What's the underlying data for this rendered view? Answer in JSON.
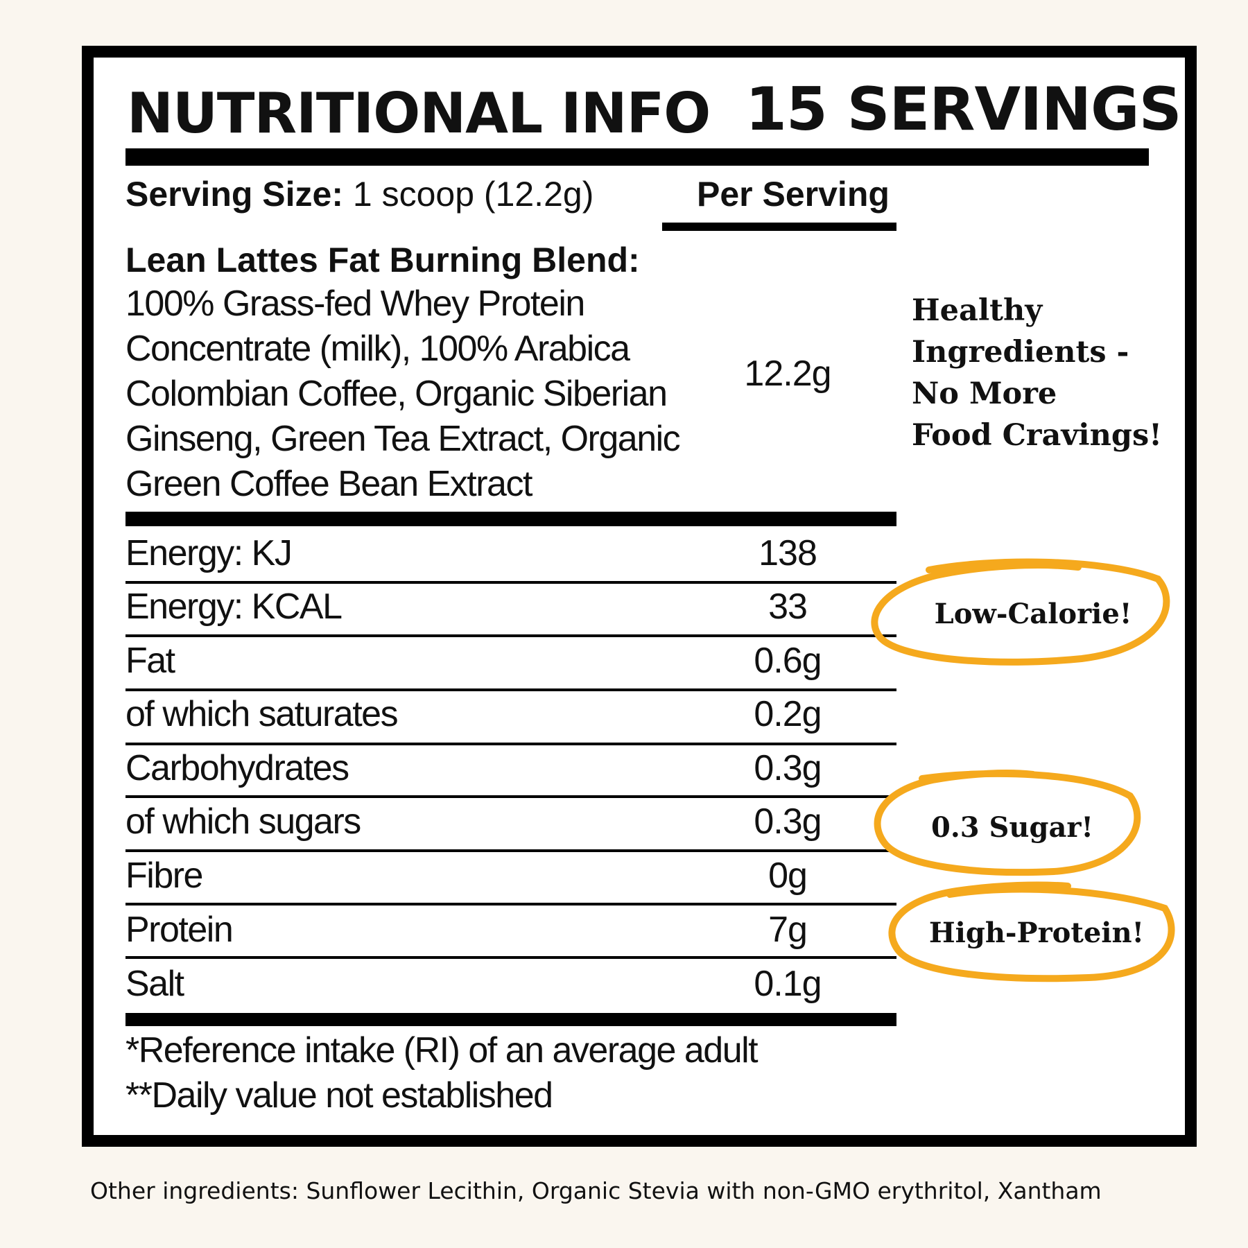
{
  "header": {
    "title": "NUTRITIONAL INFO",
    "servings": "15 SERVINGS"
  },
  "serving_size": {
    "label": "Serving Size:",
    "value": "1 scoop (12.2g)",
    "column_header": "Per Serving"
  },
  "blend": {
    "title": "Lean Lattes Fat Burning Blend:",
    "lines": [
      "100% Grass-fed Whey Protein",
      "Concentrate (milk), 100% Arabica",
      "Colombian Coffee, Organic Siberian",
      "Ginseng, Green Tea Extract,  Organic",
      "Green Coffee Bean Extract"
    ],
    "value": "12.2g"
  },
  "nutrients": [
    {
      "label": "Energy: KJ",
      "value": "138"
    },
    {
      "label": "Energy: KCAL",
      "value": "33"
    },
    {
      "label": "Fat",
      "value": "0.6g"
    },
    {
      "label": "of which saturates",
      "value": "0.2g"
    },
    {
      "label": "Carbohydrates",
      "value": "0.3g"
    },
    {
      "label": "of which sugars",
      "value": "0.3g"
    },
    {
      "label": "Fibre",
      "value": "0g"
    },
    {
      "label": "Protein",
      "value": "7g"
    },
    {
      "label": "Salt",
      "value": "0.1g"
    }
  ],
  "footnotes": [
    "*Reference intake (RI) of an average adult",
    "**Daily value not established"
  ],
  "callouts": {
    "healthy_lines": [
      "Healthy",
      "Ingredients -",
      "No More",
      "Food Cravings!"
    ],
    "low_calorie": "Low-Calorie!",
    "sugar": "0.3 Sugar!",
    "high_protein": "High-Protein!"
  },
  "other_ingredients": "Other ingredients: Sunflower Lecithin, Organic Stevia with non-GMO erythritol, Xantham",
  "colors": {
    "background": "#faf6ef",
    "panel": "#ffffff",
    "ink": "#000000",
    "highlight": "#f5a91d"
  }
}
